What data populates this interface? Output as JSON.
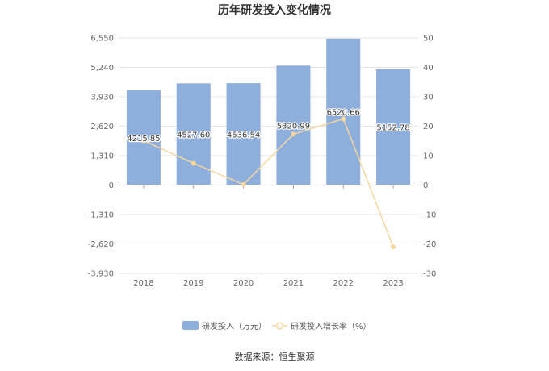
{
  "chart_data": {
    "type": "bar",
    "title": "历年研发投入变化情况",
    "categories": [
      "2018",
      "2019",
      "2020",
      "2021",
      "2022",
      "2023"
    ],
    "series": [
      {
        "name": "研发投入（万元）",
        "type": "bar",
        "axis": "left",
        "values": [
          4215.85,
          4527.6,
          4536.54,
          5320.99,
          6520.66,
          5152.78
        ],
        "labels": [
          "4215.85",
          "4527.60",
          "4536.54",
          "5320.99",
          "6520.66",
          "5152.78"
        ],
        "color": "#8eaedb"
      },
      {
        "name": "研发投入增长率（%）",
        "type": "line",
        "axis": "right",
        "values": [
          15.1,
          7.4,
          0.2,
          17.3,
          22.5,
          -21.0
        ],
        "color": "#f5d7a1"
      }
    ],
    "y_left": {
      "ylim": [
        -3930,
        6550
      ],
      "ticks": [
        "6,550",
        "5,240",
        "3,930",
        "2,620",
        "1,310",
        "0",
        "-1,310",
        "-2,620",
        "-3,930"
      ],
      "tick_values": [
        6550,
        5240,
        3930,
        2620,
        1310,
        0,
        -1310,
        -2620,
        -3930
      ]
    },
    "y_right": {
      "ylim": [
        -30,
        50
      ],
      "ticks": [
        "50",
        "40",
        "30",
        "20",
        "10",
        "0",
        "-10",
        "-20",
        "-30"
      ],
      "tick_values": [
        50,
        40,
        30,
        20,
        10,
        0,
        -10,
        -20,
        -30
      ]
    },
    "grid": true,
    "legend_position": "bottom"
  },
  "source_text": "数据来源：恒生聚源"
}
